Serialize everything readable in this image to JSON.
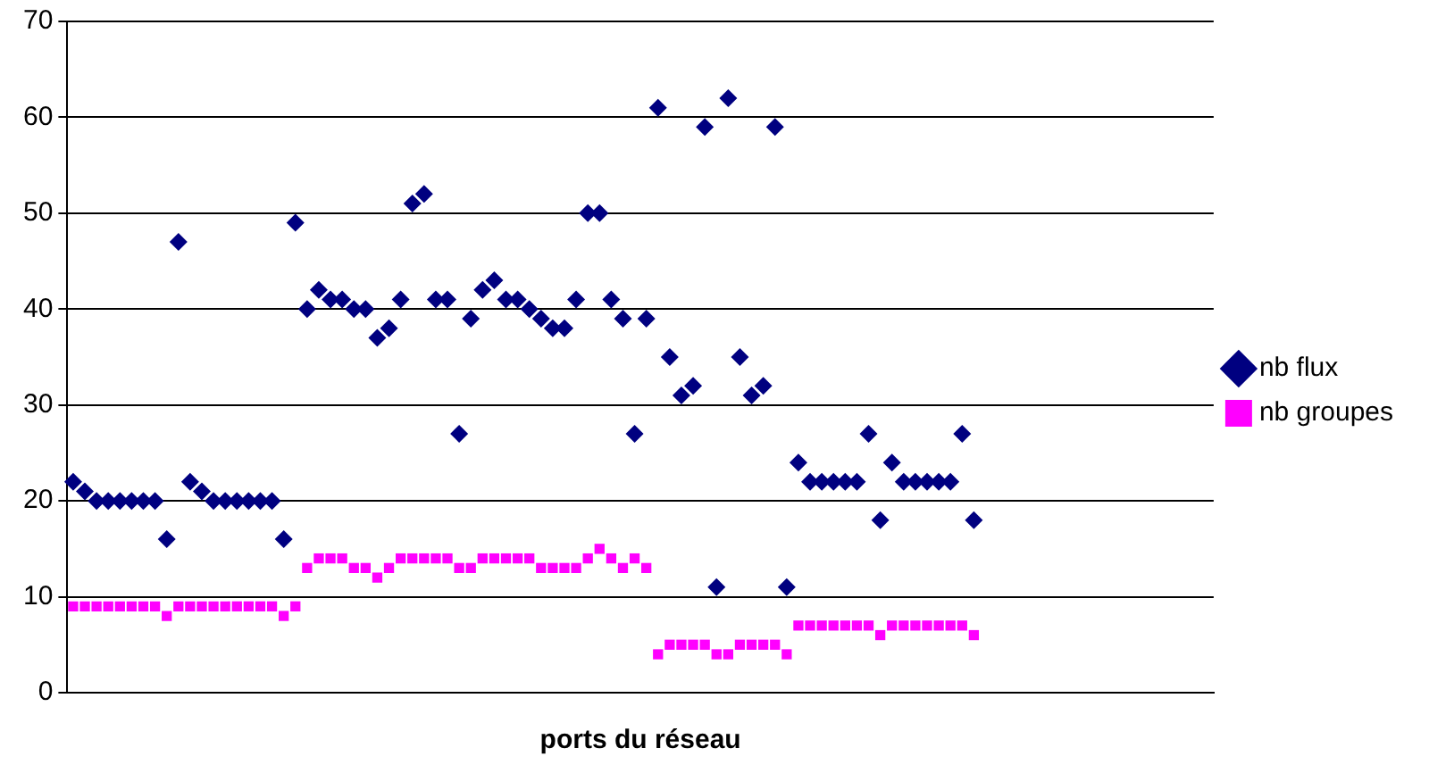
{
  "chart_data": {
    "type": "scatter",
    "xlabel": "ports du réseau",
    "categories": [
      null,
      null,
      null,
      null,
      null,
      null,
      null,
      null,
      null,
      null,
      null,
      null,
      null,
      null,
      null,
      null,
      null,
      null,
      null,
      null,
      null,
      null,
      null,
      null,
      null,
      null,
      null,
      null,
      null,
      null,
      null,
      null,
      null,
      null,
      null,
      null,
      null,
      null,
      null,
      null,
      null,
      null,
      null,
      null,
      null,
      null,
      null,
      null,
      null,
      null,
      null,
      null,
      null,
      null,
      null,
      null,
      null,
      null,
      null,
      null,
      null,
      null,
      null,
      null,
      null,
      null,
      null,
      null,
      null,
      null,
      null,
      null,
      null,
      null,
      null,
      null,
      null,
      null,
      null,
      null,
      null,
      null,
      null,
      null,
      null,
      null,
      null,
      null,
      null,
      null,
      null,
      null,
      null,
      null,
      null,
      null,
      null,
      null
    ],
    "series": [
      {
        "name": "nb flux",
        "color": "#000080",
        "marker": "diamond",
        "values": [
          22,
          21,
          20,
          20,
          20,
          20,
          20,
          20,
          16,
          47,
          22,
          21,
          20,
          20,
          20,
          20,
          20,
          20,
          16,
          49,
          40,
          42,
          41,
          41,
          40,
          40,
          37,
          38,
          41,
          51,
          52,
          41,
          41,
          27,
          39,
          42,
          43,
          41,
          41,
          40,
          39,
          38,
          38,
          41,
          50,
          50,
          41,
          39,
          27,
          39,
          61,
          35,
          31,
          32,
          59,
          11,
          62,
          35,
          31,
          32,
          59,
          11,
          24,
          22,
          22,
          22,
          22,
          22,
          27,
          18,
          24,
          22,
          22,
          22,
          22,
          22,
          27,
          18,
          null,
          null,
          null,
          null,
          null,
          null,
          null,
          null,
          null,
          null,
          null,
          null,
          null,
          null,
          null,
          null,
          null,
          null,
          null,
          null
        ]
      },
      {
        "name": "nb groupes",
        "color": "#ff00ff",
        "marker": "square",
        "values": [
          9,
          9,
          9,
          9,
          9,
          9,
          9,
          9,
          8,
          9,
          9,
          9,
          9,
          9,
          9,
          9,
          9,
          9,
          8,
          9,
          13,
          14,
          14,
          14,
          13,
          13,
          12,
          13,
          14,
          14,
          14,
          14,
          14,
          13,
          13,
          14,
          14,
          14,
          14,
          14,
          13,
          13,
          13,
          13,
          14,
          15,
          14,
          13,
          14,
          13,
          4,
          5,
          5,
          5,
          5,
          4,
          4,
          5,
          5,
          5,
          5,
          4,
          7,
          7,
          7,
          7,
          7,
          7,
          7,
          6,
          7,
          7,
          7,
          7,
          7,
          7,
          7,
          6,
          null,
          null,
          null,
          null,
          null,
          null,
          null,
          null,
          null,
          null,
          null,
          null,
          null,
          null,
          null,
          null,
          null,
          null,
          null,
          null
        ]
      }
    ],
    "ylim": [
      0,
      70
    ],
    "yticks": [
      0,
      10,
      20,
      30,
      40,
      50,
      60,
      70
    ],
    "grid": "y",
    "legend": "right",
    "tick_labels": "y"
  }
}
